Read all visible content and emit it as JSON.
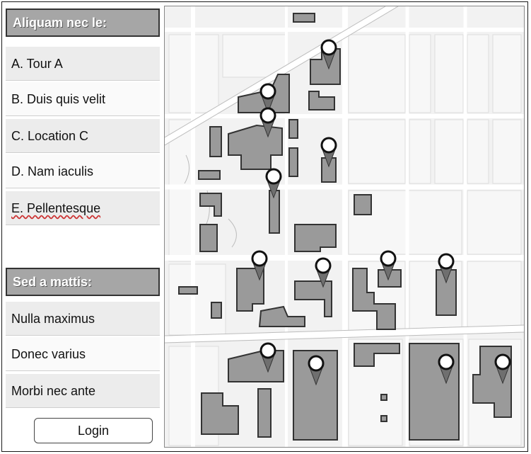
{
  "sidebar": {
    "header1": "Aliquam nec le:",
    "locations": [
      {
        "label": "A. Tour A"
      },
      {
        "label": "B. Duis quis velit"
      },
      {
        "label": "C. Location C"
      },
      {
        "label": "D. Nam iaculis"
      },
      {
        "label": "E. Pellentesque"
      }
    ],
    "header2": "Sed a mattis:",
    "options": [
      {
        "label": "Nulla maximus"
      },
      {
        "label": "Donec varius"
      },
      {
        "label": "Morbi nec ante"
      }
    ],
    "login_label": "Login"
  },
  "map": {
    "marker_icon": "map-pin-icon",
    "building_color": "#9a9a9a",
    "road_color": "#ffffff",
    "block_color": "#f2f2f2"
  }
}
